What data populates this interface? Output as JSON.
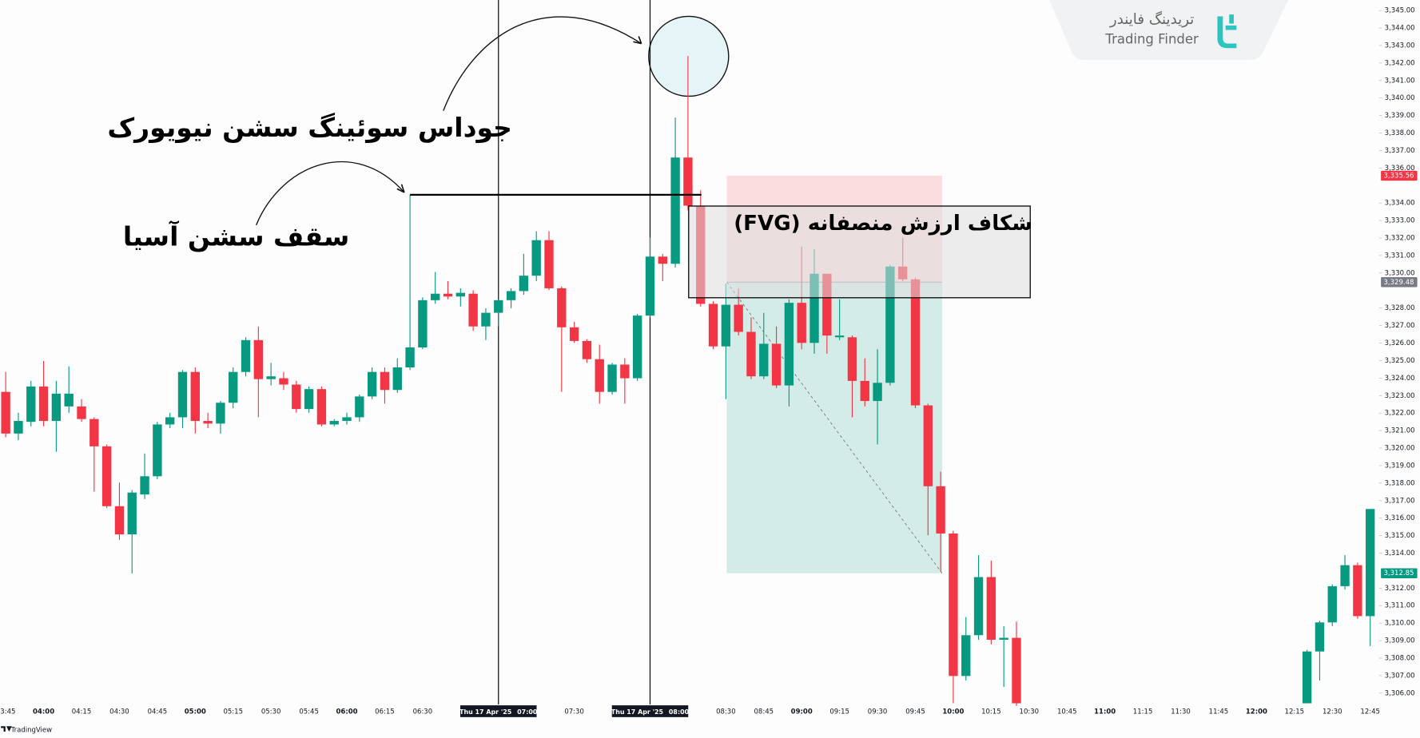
{
  "chart_data": {
    "type": "candlestick",
    "x": [
      "03:45",
      "03:50",
      "03:55",
      "04:00",
      "04:05",
      "04:10",
      "04:15",
      "04:20",
      "04:25",
      "04:30",
      "04:35",
      "04:40",
      "04:45",
      "04:50",
      "04:55",
      "05:00",
      "05:05",
      "05:10",
      "05:15",
      "05:20",
      "05:25",
      "05:30",
      "05:35",
      "05:40",
      "05:45",
      "05:50",
      "05:55",
      "06:00",
      "06:05",
      "06:10",
      "06:15",
      "06:20",
      "06:25",
      "06:30",
      "06:35",
      "06:40",
      "06:45",
      "06:50",
      "06:55",
      "07:00",
      "07:05",
      "07:10",
      "07:15",
      "07:20",
      "07:25",
      "07:30",
      "07:35",
      "07:40",
      "07:45",
      "07:50",
      "07:55",
      "08:00",
      "08:05",
      "08:10",
      "08:15",
      "08:20",
      "08:25",
      "08:30",
      "08:35",
      "08:40",
      "08:45",
      "08:50",
      "08:55",
      "09:00",
      "09:05",
      "09:10",
      "09:15",
      "09:20",
      "09:25",
      "09:30",
      "09:35",
      "09:40",
      "09:45",
      "09:50",
      "09:55",
      "10:00",
      "10:05",
      "10:10",
      "10:15",
      "10:20",
      "10:25",
      "12:20",
      "12:25",
      "12:30",
      "12:35",
      "12:40",
      "12:45"
    ],
    "open": [
      3323.21,
      3320.83,
      3321.5,
      3323.52,
      3321.55,
      3322.38,
      3322.38,
      3321.66,
      3320.1,
      3316.68,
      3315.07,
      3317.35,
      3318.39,
      3321.35,
      3321.76,
      3324.35,
      3321.55,
      3321.4,
      3322.59,
      3324.35,
      3326.17,
      3323.94,
      3323.99,
      3323.63,
      3322.23,
      3323.37,
      3321.35,
      3321.55,
      3321.76,
      3322.95,
      3324.35,
      3323.32,
      3324.61,
      3325.75,
      3328.45,
      3328.82,
      3328.66,
      3328.82,
      3326.95,
      3327.73,
      3328.45,
      3328.97,
      3329.85,
      3331.88,
      3329.13,
      3326.9,
      3326.12,
      3325.08,
      3323.21,
      3324.77,
      3323.99,
      3327.57,
      3330.94,
      3330.53,
      3336.6,
      3333.85,
      3328.24,
      3325.81,
      3328.19,
      3326.64,
      3324.1,
      3325.96,
      3323.58,
      3328.3,
      3326.01,
      3329.96,
      3326.33,
      3326.33,
      3323.84,
      3322.69,
      3323.73,
      3330.37,
      3329.64,
      3322.44,
      3317.82,
      3315.12,
      3306.98,
      3309.31,
      3312.63,
      3309.05,
      3309.16,
      3305.42,
      3308.38,
      3310.04,
      3312.11,
      3313.31,
      3310.4
    ],
    "high": [
      3324.35,
      3322.02,
      3323.84,
      3324.98,
      3323.84,
      3324.67,
      3322.8,
      3321.76,
      3320.21,
      3318.03,
      3317.61,
      3319.69,
      3321.5,
      3322.02,
      3324.46,
      3324.61,
      3322.02,
      3322.69,
      3324.61,
      3326.33,
      3326.95,
      3324.87,
      3324.35,
      3323.84,
      3323.52,
      3323.52,
      3321.66,
      3322.02,
      3323.06,
      3324.61,
      3324.61,
      3325.13,
      3334.47,
      3328.61,
      3330.06,
      3329.54,
      3329.13,
      3329.02,
      3327.99,
      3328.5,
      3329.13,
      3331.1,
      3332.39,
      3332.39,
      3329.23,
      3327.21,
      3326.22,
      3325.91,
      3324.87,
      3325.13,
      3327.67,
      3332.03,
      3331.1,
      3338.88,
      3342.4,
      3334.73,
      3328.4,
      3329.39,
      3329.13,
      3327.47,
      3327.73,
      3326.95,
      3328.5,
      3331.51,
      3331.36,
      3329.96,
      3328.5,
      3326.43,
      3325.13,
      3325.65,
      3330.47,
      3332.03,
      3329.75,
      3322.54,
      3318.65,
      3315.28,
      3310.35,
      3313.88,
      3313.57,
      3309.83,
      3310.09,
      3308.48,
      3310.14,
      3312.22,
      3313.88,
      3313.46,
      3316.52
    ],
    "low": [
      3320.62,
      3320.46,
      3321.24,
      3321.24,
      3319.79,
      3322.02,
      3321.5,
      3317.51,
      3316.57,
      3314.76,
      3312.84,
      3317.09,
      3318.23,
      3321.14,
      3321.14,
      3320.83,
      3321.14,
      3320.83,
      3322.28,
      3324.1,
      3321.76,
      3323.58,
      3323.32,
      3322.02,
      3322.02,
      3321.24,
      3321.24,
      3321.35,
      3321.5,
      3322.8,
      3322.54,
      3323.16,
      3324.46,
      3325.65,
      3328.24,
      3328.5,
      3328.09,
      3326.69,
      3326.17,
      3326.95,
      3327.99,
      3328.76,
      3329.54,
      3329.02,
      3323.21,
      3326.01,
      3324.87,
      3322.54,
      3323.06,
      3322.54,
      3323.84,
      3327.47,
      3329.54,
      3330.32,
      3333.59,
      3328.09,
      3325.65,
      3322.8,
      3326.43,
      3323.94,
      3323.94,
      3323.42,
      3322.38,
      3325.65,
      3325.39,
      3325.39,
      3326.17,
      3321.76,
      3322.38,
      3320.21,
      3323.58,
      3329.54,
      3322.28,
      3315.02,
      3312.94,
      3305.42,
      3306.72,
      3309.05,
      3308.79,
      3306.36,
      3305.27,
      3305.42,
      3306.72,
      3309.83,
      3311.91,
      3310.25,
      3308.69
    ],
    "close": [
      3320.83,
      3321.55,
      3323.52,
      3321.55,
      3323.11,
      3323.11,
      3321.66,
      3320.1,
      3316.68,
      3315.07,
      3317.46,
      3318.39,
      3321.35,
      3321.76,
      3324.35,
      3321.55,
      3321.4,
      3322.59,
      3324.35,
      3326.17,
      3323.94,
      3324.1,
      3323.63,
      3322.23,
      3323.37,
      3321.35,
      3321.55,
      3321.76,
      3322.95,
      3324.35,
      3323.32,
      3324.61,
      3325.75,
      3328.45,
      3328.82,
      3328.66,
      3328.87,
      3326.95,
      3327.73,
      3328.45,
      3328.97,
      3329.85,
      3331.88,
      3329.13,
      3326.9,
      3326.12,
      3325.08,
      3323.21,
      3324.77,
      3323.99,
      3327.57,
      3330.94,
      3330.53,
      3336.6,
      3333.85,
      3328.24,
      3325.81,
      3328.19,
      3326.64,
      3324.1,
      3325.96,
      3323.58,
      3328.3,
      3326.01,
      3329.96,
      3326.43,
      3326.43,
      3323.84,
      3322.69,
      3323.73,
      3330.37,
      3329.64,
      3322.44,
      3317.82,
      3315.12,
      3306.98,
      3309.31,
      3312.63,
      3309.05,
      3309.16,
      3305.42,
      3308.38,
      3310.04,
      3312.11,
      3313.31,
      3310.4,
      3316.52
    ],
    "up_color": "#089981",
    "down_color": "#f23645",
    "ylim": [
      3305.2,
      3345.6
    ],
    "yticks": [
      {
        "value": 3306,
        "label": "3,306.00"
      },
      {
        "value": 3307,
        "label": "3,307.00"
      },
      {
        "value": 3308,
        "label": "3,308.00"
      },
      {
        "value": 3309,
        "label": "3,309.00"
      },
      {
        "value": 3310,
        "label": "3,310.00"
      },
      {
        "value": 3311,
        "label": "3,311.00"
      },
      {
        "value": 3312,
        "label": "3,312.00"
      },
      {
        "value": 3314,
        "label": "3,314.00"
      },
      {
        "value": 3315,
        "label": "3,315.00"
      },
      {
        "value": 3316,
        "label": "3,316.00"
      },
      {
        "value": 3317,
        "label": "3,317.00"
      },
      {
        "value": 3318,
        "label": "3,318.00"
      },
      {
        "value": 3319,
        "label": "3,319.00"
      },
      {
        "value": 3320,
        "label": "3,320.00"
      },
      {
        "value": 3321,
        "label": "3,321.00"
      },
      {
        "value": 3322,
        "label": "3,322.00"
      },
      {
        "value": 3323,
        "label": "3,323.00"
      },
      {
        "value": 3324,
        "label": "3,324.00"
      },
      {
        "value": 3325,
        "label": "3,325.00"
      },
      {
        "value": 3326,
        "label": "3,326.00"
      },
      {
        "value": 3327,
        "label": "3,327.00"
      },
      {
        "value": 3328,
        "label": "3,328.00"
      },
      {
        "value": 3330,
        "label": "3,330.00"
      },
      {
        "value": 3331,
        "label": "3,331.00"
      },
      {
        "value": 3332,
        "label": "3,332.00"
      },
      {
        "value": 3333,
        "label": "3,333.00"
      },
      {
        "value": 3334,
        "label": "3,334.00"
      },
      {
        "value": 3336,
        "label": "3,336.00"
      },
      {
        "value": 3337,
        "label": "3,337.00"
      },
      {
        "value": 3338,
        "label": "3,338.00"
      },
      {
        "value": 3339,
        "label": "3,339.00"
      },
      {
        "value": 3340,
        "label": "3,340.00"
      },
      {
        "value": 3341,
        "label": "3,341.00"
      },
      {
        "value": 3342,
        "label": "3,342.00"
      },
      {
        "value": 3343,
        "label": "3,343.00"
      },
      {
        "value": 3344,
        "label": "3,344.00"
      },
      {
        "value": 3345,
        "label": "3,345.00"
      }
    ],
    "xticks": [
      "03:45",
      "04:00",
      "04:15",
      "04:30",
      "04:45",
      "05:00",
      "05:15",
      "05:30",
      "05:45",
      "06:00",
      "06:15",
      "06:30",
      "07:30",
      "08:30",
      "08:45",
      "09:00",
      "09:15",
      "09:30",
      "09:45",
      "10:00",
      "10:15",
      "10:30",
      "10:45",
      "11:00",
      "11:15",
      "11:30",
      "11:45",
      "12:00",
      "12:15",
      "12:30",
      "12:45"
    ],
    "price_labels": [
      {
        "value": 3335.56,
        "label": "3,335.56",
        "color": "#f23645"
      },
      {
        "value": 3329.48,
        "label": "3,329.48",
        "color": "#787b86"
      },
      {
        "value": 3312.85,
        "label": "3,312.85",
        "color": "#089981"
      }
    ],
    "crosshair_labels": [
      {
        "date": "Thu 17 Apr '25",
        "time": "07:00"
      },
      {
        "date": "Thu 17 Apr '25",
        "time": "08:00"
      }
    ],
    "annotations": {
      "judas_swing": "جوداس سوئینگ سشن نیویورک",
      "asia_high": "سقف سشن آسیا",
      "fvg": "شکاف ارزش منصفانه (FVG)"
    }
  },
  "logo": {
    "name_fa": "تریدینگ فایندر",
    "name_en": "Trading Finder"
  },
  "footer": {
    "brand": "TradingView"
  }
}
